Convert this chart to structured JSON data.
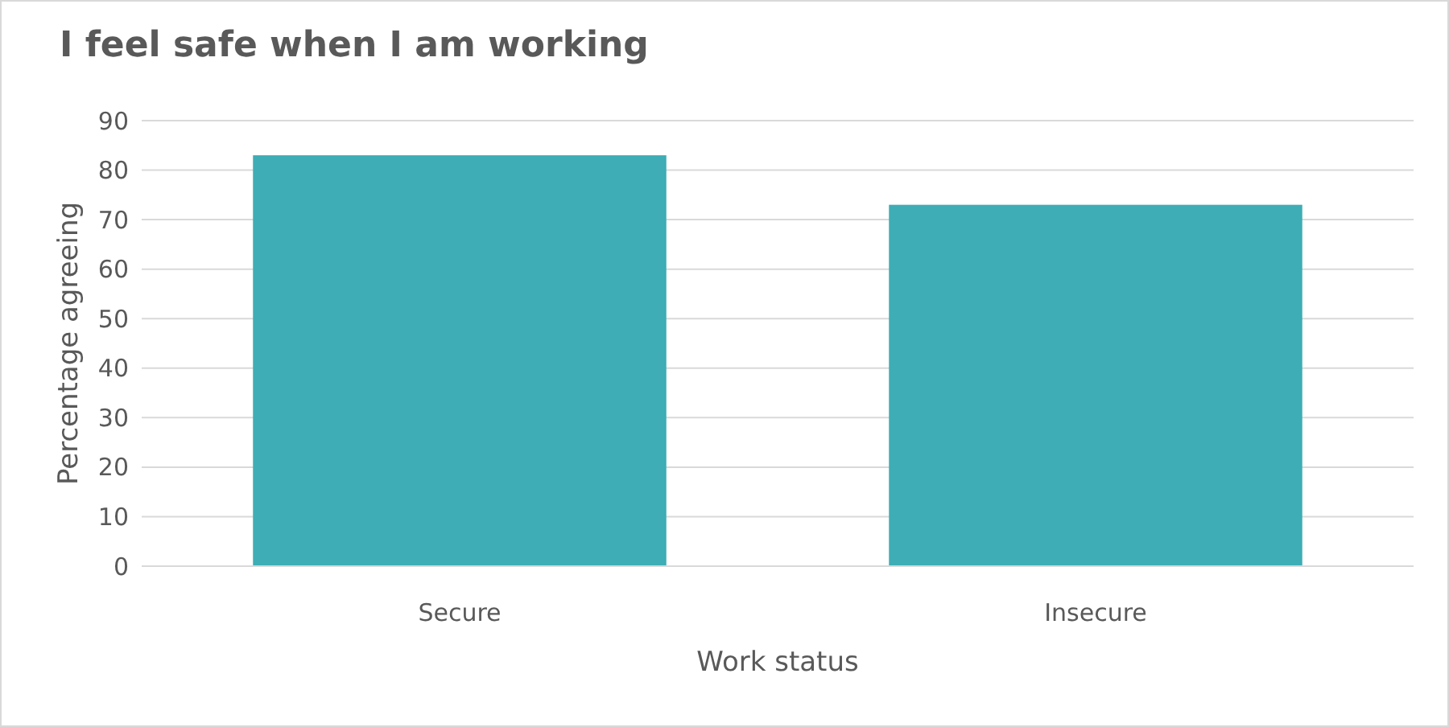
{
  "chart_data": {
    "type": "bar",
    "title": "I feel safe when I am working",
    "xlabel": "Work status",
    "ylabel": "Percentage agreeing",
    "categories": [
      "Secure",
      "Insecure"
    ],
    "values": [
      83,
      73
    ],
    "color": "#3eadb5",
    "ylim": [
      0,
      90
    ],
    "yticks": [
      0,
      10,
      20,
      30,
      40,
      50,
      60,
      70,
      80,
      90
    ],
    "grid": "y"
  }
}
